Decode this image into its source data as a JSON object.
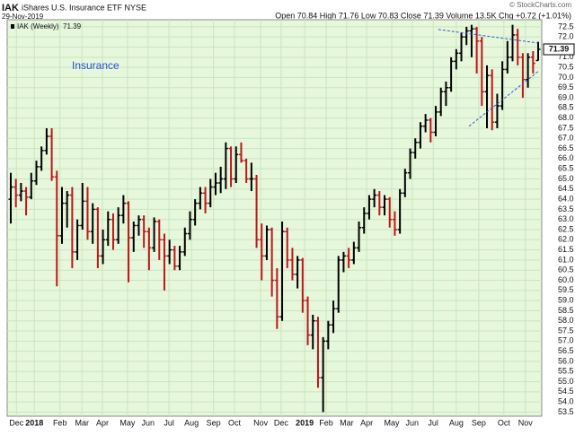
{
  "header": {
    "symbol": "IAK",
    "name": "iShares U.S. Insurance ETF  NYSE",
    "date": "29-Nov-2019",
    "quote": "Open 70.84  High 71.76  Low 70.83  Close 71.39  Volume 13.5K  Chg +0.72 (+1.01%)",
    "copyright": "© StockCharts.com"
  },
  "chart_data": {
    "type": "ohlc",
    "annotation": "Insurance",
    "up_color": "#000000",
    "down_color": "#c0151b",
    "background": "#e6f7dc",
    "grid": true,
    "xlim": [
      -0.7,
      103.7
    ],
    "ylim": [
      53.3,
      72.85
    ],
    "xticks": [
      {
        "value": 1.1,
        "label": "Dec"
      },
      {
        "value": 4.6,
        "label": "2018"
      },
      {
        "value": 9.6,
        "label": "Feb"
      },
      {
        "value": 13.9,
        "label": "Mar"
      },
      {
        "value": 17.9,
        "label": "Apr"
      },
      {
        "value": 22.8,
        "label": "May"
      },
      {
        "value": 26.8,
        "label": "Jun"
      },
      {
        "value": 30.9,
        "label": "Jul"
      },
      {
        "value": 35.3,
        "label": "Aug"
      },
      {
        "value": 39.6,
        "label": "Sep"
      },
      {
        "value": 43.7,
        "label": "Oct"
      },
      {
        "value": 48.8,
        "label": "Nov"
      },
      {
        "value": 52.8,
        "label": "Dec"
      },
      {
        "value": 57.4,
        "label": "2019"
      },
      {
        "value": 61.6,
        "label": "Feb"
      },
      {
        "value": 65.6,
        "label": "Mar"
      },
      {
        "value": 69.5,
        "label": "Apr"
      },
      {
        "value": 74.4,
        "label": "May"
      },
      {
        "value": 78.4,
        "label": "Jun"
      },
      {
        "value": 82.5,
        "label": "Jul"
      },
      {
        "value": 87.0,
        "label": "Aug"
      },
      {
        "value": 91.4,
        "label": "Sep"
      },
      {
        "value": 96.3,
        "label": "Oct"
      },
      {
        "value": 100.5,
        "label": "Nov"
      }
    ],
    "yticks": [
      53.5,
      {
        "value": 54,
        "label": "54.0"
      },
      54.5,
      {
        "value": 55,
        "label": "55.0"
      },
      55.5,
      {
        "value": 56,
        "label": "56.0"
      },
      56.5,
      {
        "value": 57,
        "label": "57.0"
      },
      57.5,
      {
        "value": 58,
        "label": "58.0"
      },
      58.5,
      {
        "value": 59,
        "label": "59.0"
      },
      59.5,
      {
        "value": 60,
        "label": "60.0"
      },
      60.5,
      {
        "value": 61,
        "label": "61.0"
      },
      61.5,
      {
        "value": 62,
        "label": "62.0"
      },
      62.5,
      {
        "value": 63,
        "label": "63.0"
      },
      63.5,
      {
        "value": 64,
        "label": "64.0"
      },
      64.5,
      {
        "value": 65,
        "label": "65.0"
      },
      65.5,
      {
        "value": 66,
        "label": "66.0"
      },
      66.5,
      {
        "value": 67,
        "label": "67.0"
      },
      67.5,
      {
        "value": 68,
        "label": "68.0"
      },
      68.5,
      {
        "value": 69,
        "label": "69.0"
      },
      69.5,
      {
        "value": 70,
        "label": "70.0"
      },
      70.5,
      {
        "value": 71,
        "label": "71.0"
      },
      71.5,
      {
        "value": 72,
        "label": "72.0"
      },
      72.5
    ],
    "trendlines": [
      {
        "color": "#3355dd",
        "x": [
          83.5,
          103
        ],
        "y": [
          72.37,
          71.7
        ]
      },
      {
        "color": "#3355dd",
        "x": [
          89.5,
          103
        ],
        "y": [
          67.6,
          70.3
        ]
      }
    ],
    "series": [
      {
        "name": "IAK (Weekly)",
        "values": [
          [
            64.0,
            65.3,
            62.8,
            64.6
          ],
          [
            64.6,
            65.0,
            63.6,
            64.2
          ],
          [
            64.2,
            64.8,
            63.9,
            64.4
          ],
          [
            64.4,
            64.6,
            63.2,
            64.1
          ],
          [
            64.1,
            65.3,
            64.0,
            64.9
          ],
          [
            64.9,
            65.9,
            64.7,
            65.6
          ],
          [
            65.6,
            66.6,
            65.4,
            66.4
          ],
          [
            66.4,
            67.5,
            66.2,
            67.1
          ],
          [
            67.1,
            67.5,
            64.9,
            65.1
          ],
          [
            65.1,
            65.4,
            59.7,
            62.2
          ],
          [
            62.2,
            64.6,
            61.8,
            63.8
          ],
          [
            63.8,
            64.4,
            62.6,
            64.2
          ],
          [
            64.2,
            64.6,
            60.6,
            61.4
          ],
          [
            61.4,
            63.0,
            61.0,
            62.7
          ],
          [
            62.7,
            64.8,
            62.5,
            63.9
          ],
          [
            63.9,
            64.6,
            62.0,
            62.4
          ],
          [
            62.4,
            63.8,
            61.8,
            63.5
          ],
          [
            63.5,
            63.6,
            60.6,
            61.2
          ],
          [
            61.2,
            62.5,
            60.8,
            62.0
          ],
          [
            62.0,
            63.4,
            61.7,
            63.0
          ],
          [
            63.0,
            63.3,
            61.5,
            62.0
          ],
          [
            62.0,
            63.6,
            61.8,
            63.2
          ],
          [
            63.2,
            64.2,
            62.8,
            63.8
          ],
          [
            63.8,
            63.9,
            59.9,
            62.1
          ],
          [
            62.1,
            62.9,
            61.4,
            62.7
          ],
          [
            62.7,
            63.2,
            62.2,
            63.0
          ],
          [
            63.0,
            63.2,
            61.6,
            62.4
          ],
          [
            62.4,
            62.6,
            60.5,
            61.6
          ],
          [
            61.6,
            63.1,
            61.4,
            62.9
          ],
          [
            62.9,
            63.0,
            61.0,
            62.0
          ],
          [
            62.0,
            62.3,
            59.5,
            61.2
          ],
          [
            61.2,
            62.0,
            60.8,
            61.5
          ],
          [
            61.5,
            61.7,
            60.5,
            60.7
          ],
          [
            60.7,
            61.7,
            60.5,
            61.4
          ],
          [
            61.4,
            62.6,
            61.2,
            62.3
          ],
          [
            62.3,
            63.4,
            62.0,
            63.0
          ],
          [
            63.0,
            64.0,
            62.7,
            63.8
          ],
          [
            63.8,
            64.6,
            63.5,
            64.3
          ],
          [
            64.3,
            64.6,
            63.3,
            63.8
          ],
          [
            63.8,
            65.0,
            63.6,
            64.6
          ],
          [
            64.6,
            65.3,
            64.2,
            64.8
          ],
          [
            64.8,
            65.6,
            64.3,
            65.0
          ],
          [
            65.0,
            66.8,
            64.5,
            66.5
          ],
          [
            66.5,
            66.6,
            64.6,
            65.0
          ],
          [
            65.0,
            66.6,
            64.8,
            66.2
          ],
          [
            66.2,
            66.8,
            65.8,
            65.9
          ],
          [
            65.9,
            66.0,
            64.8,
            65.0
          ],
          [
            65.0,
            65.8,
            64.4,
            65.0
          ],
          [
            65.0,
            65.2,
            61.6,
            62.0
          ],
          [
            62.0,
            62.8,
            60.0,
            61.2
          ],
          [
            61.2,
            62.7,
            61.0,
            62.5
          ],
          [
            62.5,
            62.6,
            59.2,
            60.0
          ],
          [
            60.0,
            60.6,
            57.6,
            58.2
          ],
          [
            58.2,
            62.9,
            58.0,
            62.4
          ],
          [
            62.4,
            62.6,
            60.6,
            61.0
          ],
          [
            61.0,
            61.6,
            60.0,
            60.3
          ],
          [
            60.3,
            61.2,
            59.6,
            61.0
          ],
          [
            61.0,
            61.1,
            58.4,
            59.0
          ],
          [
            59.0,
            59.2,
            56.8,
            57.3
          ],
          [
            57.3,
            58.3,
            56.6,
            58.0
          ],
          [
            58.0,
            58.2,
            54.7,
            55.2
          ],
          [
            55.2,
            57.2,
            53.5,
            57.0
          ],
          [
            57.0,
            58.0,
            56.6,
            57.8
          ],
          [
            57.8,
            59.0,
            57.4,
            58.6
          ],
          [
            58.6,
            61.2,
            58.4,
            61.0
          ],
          [
            61.0,
            61.4,
            60.4,
            61.2
          ],
          [
            61.2,
            61.6,
            60.6,
            61.0
          ],
          [
            61.0,
            61.9,
            60.8,
            61.6
          ],
          [
            61.6,
            62.9,
            61.4,
            62.6
          ],
          [
            62.6,
            63.6,
            62.3,
            63.3
          ],
          [
            63.3,
            64.2,
            63.0,
            64.0
          ],
          [
            64.0,
            64.5,
            63.6,
            64.2
          ],
          [
            64.2,
            64.4,
            63.2,
            63.6
          ],
          [
            63.6,
            64.2,
            63.2,
            64.0
          ],
          [
            64.0,
            64.1,
            62.6,
            63.0
          ],
          [
            63.0,
            63.4,
            62.2,
            62.5
          ],
          [
            62.5,
            64.5,
            62.3,
            64.3
          ],
          [
            64.3,
            65.5,
            64.1,
            65.3
          ],
          [
            65.3,
            66.5,
            65.0,
            66.3
          ],
          [
            66.3,
            67.0,
            66.0,
            66.8
          ],
          [
            66.8,
            67.8,
            66.5,
            67.6
          ],
          [
            67.6,
            68.2,
            67.3,
            67.9
          ],
          [
            67.9,
            68.0,
            66.8,
            67.3
          ],
          [
            67.3,
            68.6,
            67.1,
            68.3
          ],
          [
            68.3,
            69.5,
            68.1,
            69.3
          ],
          [
            69.3,
            69.8,
            68.6,
            69.5
          ],
          [
            69.5,
            71.0,
            69.3,
            70.8
          ],
          [
            70.8,
            71.4,
            70.4,
            71.2
          ],
          [
            71.2,
            72.2,
            70.8,
            72.0
          ],
          [
            72.0,
            72.5,
            71.6,
            72.3
          ],
          [
            72.3,
            72.6,
            71.0,
            72.4
          ],
          [
            72.4,
            72.5,
            70.2,
            71.8
          ],
          [
            71.8,
            72.0,
            68.6,
            69.3
          ],
          [
            69.3,
            70.6,
            67.5,
            70.1
          ],
          [
            70.1,
            70.4,
            67.4,
            67.8
          ],
          [
            67.8,
            69.2,
            67.5,
            68.6
          ],
          [
            68.6,
            70.8,
            68.4,
            70.4
          ],
          [
            70.4,
            71.8,
            70.2,
            71.0
          ],
          [
            71.0,
            72.6,
            70.8,
            72.1
          ],
          [
            72.1,
            72.4,
            70.6,
            71.0
          ],
          [
            71.0,
            71.2,
            69.0,
            69.9
          ],
          [
            69.9,
            71.2,
            69.5,
            71.0
          ],
          [
            71.0,
            71.3,
            70.2,
            70.7
          ],
          [
            70.84,
            71.76,
            70.83,
            71.39
          ]
        ]
      }
    ]
  }
}
